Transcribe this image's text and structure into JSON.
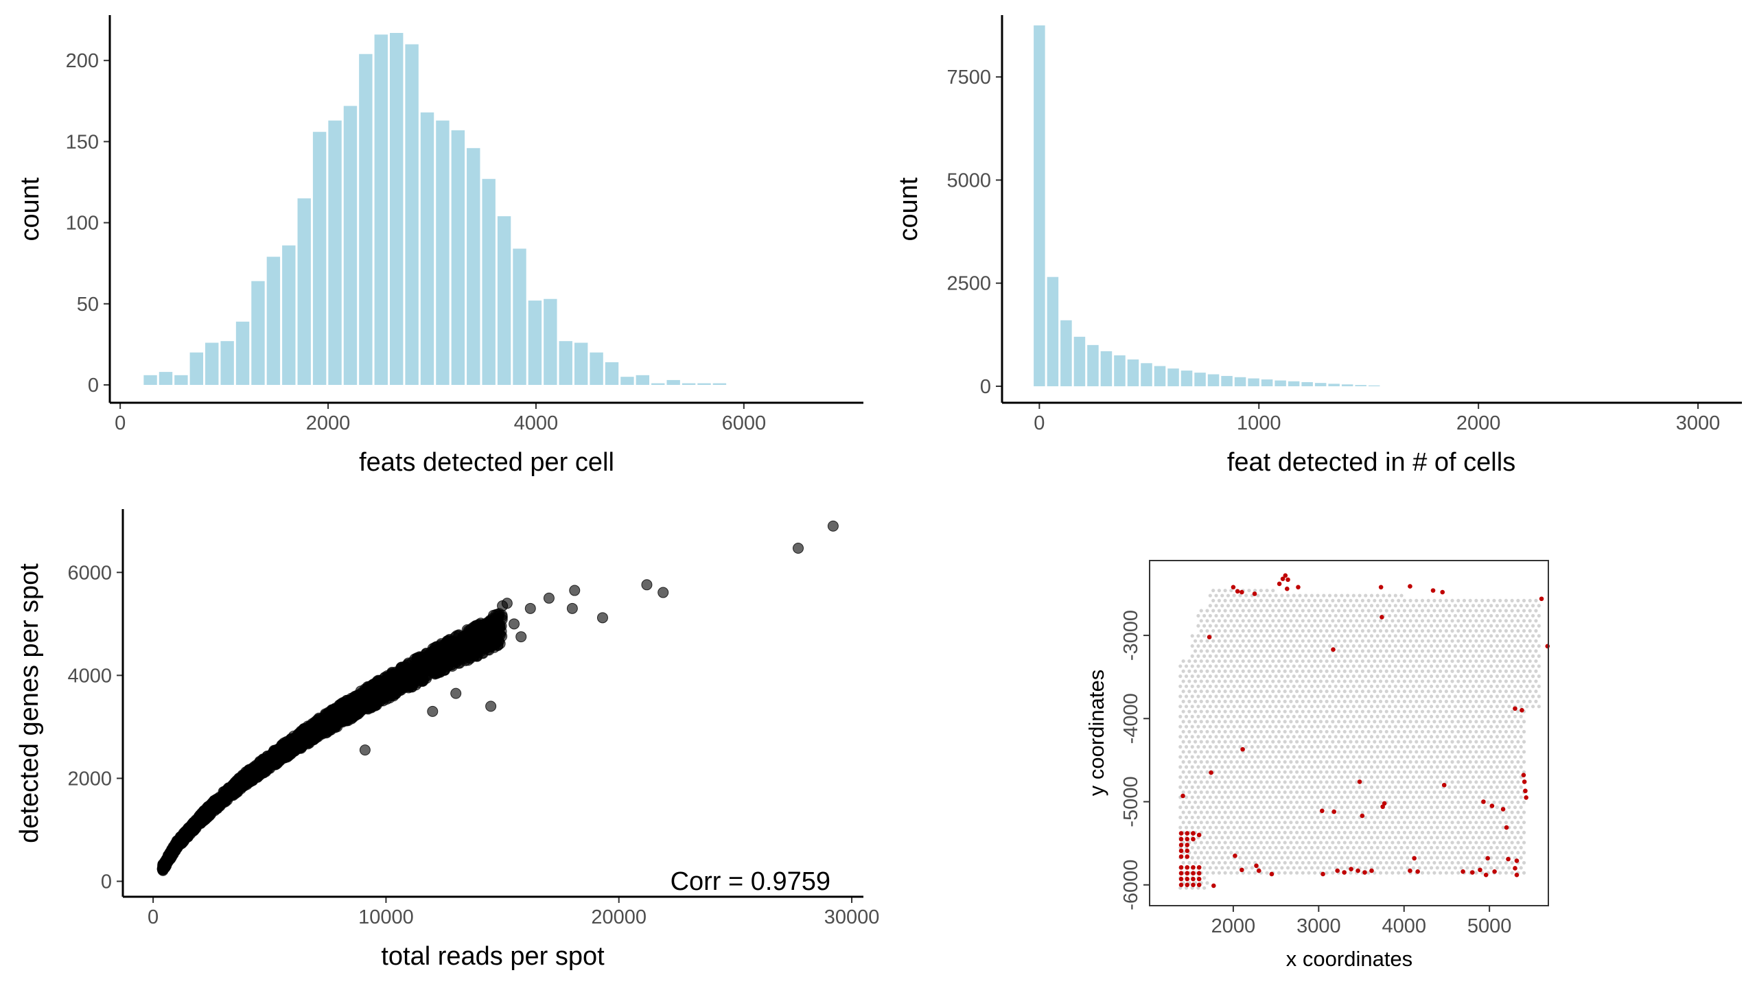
{
  "colors": {
    "bar": "#add8e6",
    "point": "#000000",
    "spot_default": "#d3d3d3",
    "spot_highlight": "#c00000"
  },
  "chart_data": [
    {
      "id": "hist_feats_per_cell",
      "type": "bar",
      "xlabel": "feats detected per cell",
      "ylabel": "count",
      "xlim": [
        -100,
        7150
      ],
      "ylim": [
        -11,
        228
      ],
      "xticks": [
        0,
        2000,
        4000,
        6000
      ],
      "yticks": [
        0,
        50,
        100,
        150,
        200
      ],
      "bin_width": 148,
      "bin_centers": [
        290,
        438,
        586,
        734,
        882,
        1030,
        1178,
        1326,
        1474,
        1622,
        1770,
        1918,
        2066,
        2214,
        2362,
        2510,
        2658,
        2806,
        2954,
        3102,
        3250,
        3398,
        3546,
        3694,
        3842,
        3990,
        4138,
        4286,
        4434,
        4582,
        4730,
        4878,
        5026,
        5174,
        5322,
        5470,
        5618,
        5766
      ],
      "values": [
        6,
        8,
        6,
        20,
        26,
        27,
        39,
        64,
        79,
        86,
        115,
        156,
        163,
        172,
        204,
        216,
        217,
        210,
        168,
        163,
        157,
        146,
        127,
        104,
        84,
        52,
        53,
        27,
        26,
        20,
        14,
        5,
        6,
        1,
        3,
        1,
        1,
        1
      ]
    },
    {
      "id": "hist_feat_in_cells",
      "type": "bar",
      "xlabel": "feat detected in # of cells",
      "ylabel": "count",
      "xlim": [
        -170,
        3200
      ],
      "ylim": [
        -400,
        9000
      ],
      "xticks": [
        0,
        1000,
        2000,
        3000
      ],
      "yticks": [
        0,
        2500,
        5000,
        7500
      ],
      "bin_width": 61,
      "bin_centers": [
        0,
        61,
        122,
        183,
        244,
        305,
        366,
        427,
        488,
        549,
        610,
        671,
        732,
        793,
        854,
        915,
        976,
        1037,
        1098,
        1159,
        1220,
        1281,
        1342,
        1403,
        1464,
        1525
      ],
      "values": [
        8750,
        2650,
        1600,
        1200,
        1000,
        850,
        750,
        650,
        560,
        490,
        430,
        380,
        330,
        290,
        250,
        220,
        190,
        165,
        140,
        120,
        100,
        80,
        60,
        45,
        30,
        20
      ]
    },
    {
      "id": "scatter_reads_genes",
      "type": "scatter",
      "xlabel": "total reads per spot",
      "ylabel": "detected genes per spot",
      "xlim": [
        -1300,
        30500
      ],
      "ylim": [
        -300,
        7230
      ],
      "xticks": [
        0,
        10000,
        20000,
        30000
      ],
      "yticks": [
        0,
        2000,
        4000,
        6000
      ],
      "annotation": "Corr = 0.9759",
      "trend_points": [
        [
          400,
          250
        ],
        [
          1000,
          700
        ],
        [
          2000,
          1200
        ],
        [
          3000,
          1620
        ],
        [
          4000,
          2000
        ],
        [
          5000,
          2330
        ],
        [
          6000,
          2650
        ],
        [
          7000,
          2950
        ],
        [
          8000,
          3230
        ],
        [
          9000,
          3500
        ],
        [
          10000,
          3760
        ],
        [
          11000,
          4000
        ],
        [
          12000,
          4250
        ],
        [
          13000,
          4480
        ],
        [
          14000,
          4700
        ],
        [
          15000,
          4950
        ]
      ],
      "outliers": [
        [
          15200,
          5400
        ],
        [
          15000,
          5350
        ],
        [
          16200,
          5300
        ],
        [
          15500,
          5000
        ],
        [
          15800,
          4750
        ],
        [
          17000,
          5500
        ],
        [
          18100,
          5650
        ],
        [
          18000,
          5300
        ],
        [
          19300,
          5120
        ],
        [
          21200,
          5760
        ],
        [
          21900,
          5610
        ],
        [
          27700,
          6470
        ],
        [
          29200,
          6900
        ],
        [
          9100,
          2550
        ],
        [
          13000,
          3650
        ],
        [
          14500,
          3400
        ],
        [
          12000,
          3300
        ]
      ]
    },
    {
      "id": "spatial_spots",
      "type": "scatter",
      "xlabel": "x coordinates",
      "ylabel": "y coordinates",
      "xlim": [
        1020,
        5690
      ],
      "ylim": [
        -6250,
        -2100
      ],
      "xticks": [
        2000,
        3000,
        4000,
        5000
      ],
      "yticks": [
        -3000,
        -4000,
        -5000,
        -6000
      ],
      "grid_spacing": 70,
      "highlighted_spots": [
        [
          1390,
          -5380
        ],
        [
          1460,
          -5380
        ],
        [
          1530,
          -5380
        ],
        [
          1390,
          -5450
        ],
        [
          1460,
          -5450
        ],
        [
          1530,
          -5450
        ],
        [
          1390,
          -5520
        ],
        [
          1460,
          -5520
        ],
        [
          1390,
          -5590
        ],
        [
          1460,
          -5590
        ],
        [
          1390,
          -5660
        ],
        [
          1460,
          -5660
        ],
        [
          1390,
          -5790
        ],
        [
          1460,
          -5790
        ],
        [
          1530,
          -5790
        ],
        [
          1600,
          -5790
        ],
        [
          1390,
          -5860
        ],
        [
          1460,
          -5860
        ],
        [
          1530,
          -5860
        ],
        [
          1600,
          -5860
        ],
        [
          1390,
          -5930
        ],
        [
          1460,
          -5930
        ],
        [
          1530,
          -5930
        ],
        [
          1600,
          -5930
        ],
        [
          1390,
          -6000
        ],
        [
          1460,
          -6000
        ],
        [
          1530,
          -6000
        ],
        [
          1600,
          -6000
        ],
        [
          1530,
          -5380
        ],
        [
          1600,
          -5400
        ],
        [
          1410,
          -4930
        ],
        [
          1720,
          -3020
        ],
        [
          1740,
          -4650
        ],
        [
          2000,
          -2420
        ],
        [
          2050,
          -2470
        ],
        [
          2100,
          -2480
        ],
        [
          2250,
          -2500
        ],
        [
          2540,
          -2380
        ],
        [
          2580,
          -2320
        ],
        [
          2610,
          -2280
        ],
        [
          2640,
          -2330
        ],
        [
          2760,
          -2420
        ],
        [
          2630,
          -2440
        ],
        [
          3170,
          -3170
        ],
        [
          2110,
          -4370
        ],
        [
          1770,
          -6010
        ],
        [
          2020,
          -5650
        ],
        [
          2100,
          -5820
        ],
        [
          2270,
          -5770
        ],
        [
          2300,
          -5830
        ],
        [
          2450,
          -5870
        ],
        [
          3040,
          -5110
        ],
        [
          3180,
          -5120
        ],
        [
          3480,
          -4760
        ],
        [
          3510,
          -5170
        ],
        [
          3750,
          -5060
        ],
        [
          3770,
          -5020
        ],
        [
          3730,
          -2420
        ],
        [
          3740,
          -2780
        ],
        [
          4070,
          -2410
        ],
        [
          4340,
          -2460
        ],
        [
          4450,
          -2480
        ],
        [
          4070,
          -5830
        ],
        [
          4160,
          -5840
        ],
        [
          4120,
          -5680
        ],
        [
          4470,
          -4800
        ],
        [
          3050,
          -5870
        ],
        [
          3220,
          -5830
        ],
        [
          3300,
          -5850
        ],
        [
          3380,
          -5810
        ],
        [
          3460,
          -5830
        ],
        [
          3540,
          -5850
        ],
        [
          3620,
          -5830
        ],
        [
          4690,
          -5840
        ],
        [
          4800,
          -5850
        ],
        [
          4890,
          -5820
        ],
        [
          4980,
          -5680
        ],
        [
          5060,
          -5840
        ],
        [
          4960,
          -5880
        ],
        [
          4930,
          -5000
        ],
        [
          5030,
          -5050
        ],
        [
          5160,
          -5090
        ],
        [
          5200,
          -5310
        ],
        [
          5220,
          -5690
        ],
        [
          5320,
          -5710
        ],
        [
          5300,
          -5800
        ],
        [
          5320,
          -5880
        ],
        [
          5400,
          -4680
        ],
        [
          5410,
          -4760
        ],
        [
          5420,
          -4870
        ],
        [
          5430,
          -4950
        ],
        [
          5300,
          -3880
        ],
        [
          5380,
          -3900
        ],
        [
          5680,
          -3130
        ],
        [
          5610,
          -2560
        ]
      ]
    }
  ]
}
